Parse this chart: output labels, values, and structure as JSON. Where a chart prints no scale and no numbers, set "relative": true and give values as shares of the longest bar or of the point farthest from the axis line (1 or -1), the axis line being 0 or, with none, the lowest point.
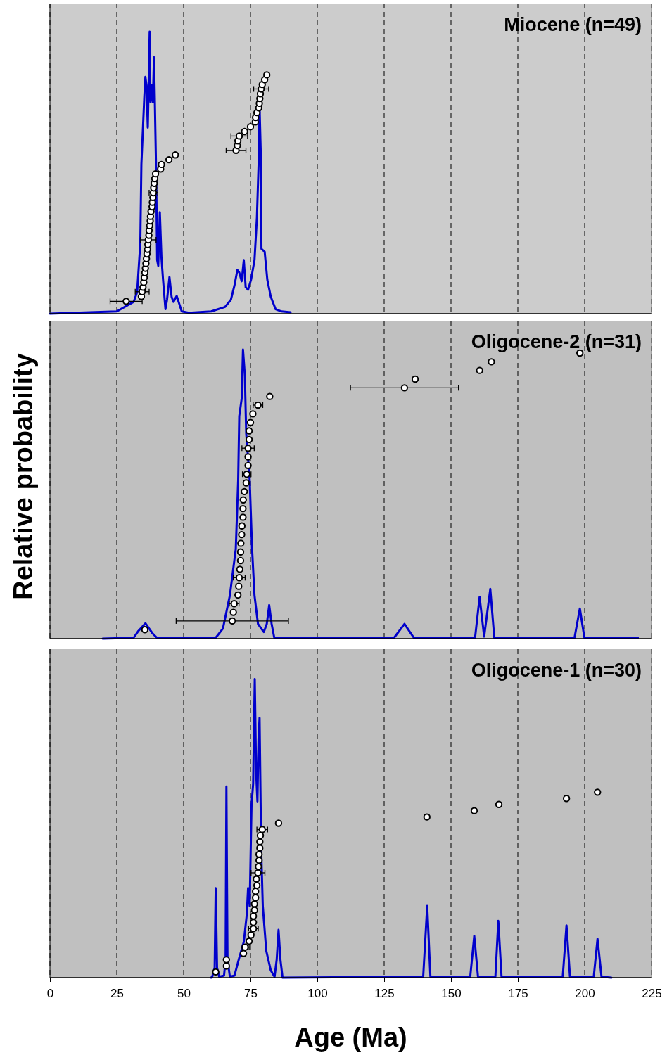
{
  "chart_data": [
    {
      "type": "line",
      "title": "Miocene (n=49)",
      "relative": true,
      "xlim": [
        0,
        225
      ],
      "xticks": [
        0,
        25,
        50,
        75,
        100,
        125,
        150,
        175,
        200,
        225
      ],
      "grid": "x",
      "tick_labels": false,
      "series": [
        {
          "type": "line",
          "color": "#0000cc",
          "x": [
            0,
            15,
            25,
            31.3,
            32.6,
            33.8,
            34.2,
            35.3,
            35.7,
            36.1,
            36.6,
            37.3,
            37.6,
            38.2,
            38.5,
            38.9,
            39.2,
            39.7,
            40.1,
            40.5,
            41.1,
            41.7,
            42.3,
            43.2,
            43.8,
            44.7,
            45.5,
            46.2,
            47.4,
            48.4,
            49.3,
            52,
            60.3,
            65.5,
            67.7,
            69.0,
            70.1,
            70.8,
            71.7,
            72.5,
            73.2,
            74.1,
            75.2,
            76.5,
            77.4,
            78.1,
            78.4,
            78.9,
            79.1,
            80.3,
            81.3,
            82.6,
            84.4,
            86.6,
            90
          ],
          "values": [
            0,
            0.005,
            0.008,
            0.042,
            0.076,
            0.25,
            0.53,
            0.77,
            0.84,
            0.81,
            0.66,
            1.0,
            0.75,
            0.81,
            0.75,
            0.91,
            0.77,
            0.51,
            0.19,
            0.17,
            0.36,
            0.2,
            0.12,
            0.016,
            0.05,
            0.13,
            0.06,
            0.042,
            0.063,
            0.034,
            0.008,
            0.003,
            0.008,
            0.024,
            0.05,
            0.1,
            0.155,
            0.146,
            0.115,
            0.19,
            0.094,
            0.085,
            0.12,
            0.19,
            0.34,
            0.55,
            0.73,
            0.55,
            0.23,
            0.22,
            0.12,
            0.06,
            0.016,
            0.008,
            0.005
          ]
        },
        {
          "type": "scatter",
          "color": "#ffffff",
          "marker": "circle",
          "x": [
            28.5,
            34.2,
            34.5,
            34.8,
            35.1,
            35.3,
            35.5,
            35.7,
            35.9,
            36.1,
            36.3,
            36.5,
            36.6,
            36.8,
            37.0,
            37.1,
            37.3,
            37.5,
            37.6,
            37.8,
            38.2,
            38.3,
            38.5,
            38.7,
            38.8,
            39.0,
            39.2,
            39.5,
            41.4,
            41.7,
            44.5,
            46.9,
            69.6,
            70.1,
            70.3,
            70.8,
            72.8,
            75.0,
            76.8,
            76.9,
            77.4,
            78.1,
            78.3,
            78.5,
            78.7,
            79.0,
            79.4,
            80.3,
            81.1
          ],
          "values": [
            0.044,
            0.061,
            0.078,
            0.094,
            0.111,
            0.128,
            0.145,
            0.161,
            0.178,
            0.195,
            0.212,
            0.228,
            0.245,
            0.262,
            0.278,
            0.295,
            0.312,
            0.329,
            0.345,
            0.362,
            0.379,
            0.395,
            0.412,
            0.429,
            0.446,
            0.462,
            0.479,
            0.496,
            0.513,
            0.529,
            0.546,
            0.563,
            0.579,
            0.596,
            0.613,
            0.63,
            0.646,
            0.663,
            0.68,
            0.696,
            0.713,
            0.73,
            0.746,
            0.763,
            0.78,
            0.797,
            0.813,
            0.83,
            0.847
          ],
          "xerrors": [
            6,
            null,
            2.6,
            null,
            null,
            null,
            null,
            null,
            null,
            null,
            null,
            null,
            null,
            2.9,
            null,
            null,
            null,
            null,
            null,
            null,
            null,
            null,
            null,
            1.6,
            null,
            null,
            null,
            null,
            null,
            null,
            null,
            null,
            3.7,
            null,
            null,
            3.1,
            null,
            null,
            null,
            null,
            null,
            null,
            null,
            null,
            null,
            2.8,
            null,
            null,
            null
          ]
        }
      ]
    },
    {
      "type": "line",
      "title": "Oligocene-2 (n=31)",
      "ylabel": "Relative probability",
      "relative": true,
      "xlim": [
        0,
        225
      ],
      "xticks": [
        0,
        25,
        50,
        75,
        100,
        125,
        150,
        175,
        200,
        225
      ],
      "grid": "x",
      "tick_labels": false,
      "series": [
        {
          "type": "line",
          "color": "#0000cc",
          "x": [
            19.7,
            31.3,
            33.1,
            35.7,
            38.3,
            40,
            62.0,
            64.7,
            67.3,
            69.5,
            70.4,
            70.8,
            71.7,
            72.2,
            72.9,
            73.4,
            74.7,
            75.6,
            76.5,
            77.8,
            80.0,
            81.1,
            82.0,
            82.9,
            83.9,
            128.7,
            132.6,
            136.1,
            159.0,
            160.7,
            162.4,
            164.7,
            166.2,
            196.2,
            198.2,
            199.9,
            219.9
          ],
          "values": [
            0,
            0.003,
            0.027,
            0.053,
            0.019,
            0.003,
            0.003,
            0.035,
            0.15,
            0.31,
            0.55,
            0.77,
            0.83,
            1.0,
            0.91,
            0.71,
            0.55,
            0.31,
            0.15,
            0.051,
            0.023,
            0.051,
            0.116,
            0.051,
            0.003,
            0.003,
            0.051,
            0.003,
            0.003,
            0.144,
            0.007,
            0.172,
            0.003,
            0.003,
            0.104,
            0.003,
            0.003
          ]
        },
        {
          "type": "scatter",
          "color": "#ffffff",
          "marker": "circle",
          "x": [
            35.5,
            68.2,
            68.6,
            68.9,
            70.3,
            70.6,
            70.8,
            71.0,
            71.3,
            71.3,
            71.4,
            71.7,
            71.8,
            72.2,
            72.2,
            72.3,
            72.7,
            73.4,
            73.6,
            74.1,
            74.1,
            74.1,
            74.5,
            74.5,
            75.0,
            75.9,
            77.8,
            82.2,
            132.6,
            136.6,
            160.7,
            165.1,
            198.2
          ],
          "values": [
            0.031,
            0.061,
            0.091,
            0.121,
            0.151,
            0.181,
            0.211,
            0.24,
            0.27,
            0.3,
            0.33,
            0.36,
            0.39,
            0.42,
            0.45,
            0.48,
            0.509,
            0.539,
            0.569,
            0.599,
            0.629,
            0.659,
            0.689,
            0.719,
            0.748,
            0.778,
            0.808,
            0.838,
            0.868,
            0.898,
            0.928,
            0.958,
            0.988
          ],
          "xerrors": [
            null,
            21,
            null,
            1.8,
            null,
            null,
            2.2,
            null,
            null,
            null,
            null,
            null,
            null,
            null,
            null,
            null,
            null,
            null,
            1.6,
            null,
            null,
            2.3,
            null,
            null,
            null,
            null,
            1.8,
            null,
            20.2,
            null,
            null,
            null,
            null
          ]
        }
      ]
    },
    {
      "type": "line",
      "title": "Oligocene-1 (n=30)",
      "xlabel": "Age (Ma)",
      "relative": true,
      "xlim": [
        0,
        225
      ],
      "xticks": [
        0,
        25,
        50,
        75,
        100,
        125,
        150,
        175,
        200,
        225
      ],
      "grid": "x",
      "tick_labels": "x",
      "series": [
        {
          "type": "line",
          "color": "#0000cc",
          "x": [
            60.3,
            60.7,
            61.6,
            62.0,
            62.5,
            63.3,
            65.1,
            65.7,
            66.0,
            66.4,
            67.3,
            69.0,
            70.8,
            72.5,
            73.6,
            74.1,
            74.7,
            75.4,
            76.0,
            76.6,
            77.1,
            77.6,
            78.0,
            78.4,
            78.7,
            79.0,
            79.6,
            80.9,
            82.6,
            84.0,
            84.8,
            85.5,
            86.2,
            87.0,
            139.6,
            141.1,
            142.3,
            157.2,
            158.7,
            160.1,
            166.6,
            167.7,
            168.9,
            191.8,
            193.2,
            194.5,
            203.4,
            204.8,
            206.3,
            210
          ],
          "values": [
            0,
            0.003,
            0.033,
            0.3,
            0.033,
            0.003,
            0.007,
            0.06,
            0.64,
            0.06,
            0.003,
            0.007,
            0.067,
            0.12,
            0.21,
            0.3,
            0.24,
            0.58,
            0.65,
            1.0,
            0.69,
            0.59,
            0.8,
            0.87,
            0.65,
            0.43,
            0.24,
            0.09,
            0.024,
            0.003,
            0.06,
            0.16,
            0.06,
            0,
            0.003,
            0.24,
            0.003,
            0.003,
            0.14,
            0.003,
            0.003,
            0.19,
            0.003,
            0.003,
            0.175,
            0.003,
            0.003,
            0.13,
            0.003,
            0
          ]
        },
        {
          "type": "scatter",
          "color": "#ffffff",
          "marker": "circle",
          "x": [
            62.0,
            66.0,
            66.0,
            72.4,
            73.0,
            74.5,
            75.2,
            76.1,
            76.1,
            76.1,
            76.5,
            76.5,
            76.9,
            76.9,
            77.4,
            77.2,
            77.8,
            78.0,
            78.2,
            78.2,
            78.5,
            78.5,
            78.7,
            79.4,
            85.5,
            141.0,
            158.7,
            167.9,
            193.2,
            204.8
          ],
          "values": [
            0.019,
            0.039,
            0.06,
            0.081,
            0.102,
            0.122,
            0.143,
            0.164,
            0.185,
            0.206,
            0.226,
            0.247,
            0.268,
            0.289,
            0.309,
            0.33,
            0.351,
            0.372,
            0.393,
            0.413,
            0.434,
            0.455,
            0.476,
            0.496,
            0.517,
            0.538,
            0.559,
            0.58,
            0.6,
            0.621
          ],
          "xerrors": [
            null,
            null,
            null,
            null,
            1.5,
            null,
            null,
            1.8,
            null,
            null,
            null,
            null,
            null,
            null,
            null,
            null,
            2.6,
            null,
            null,
            null,
            null,
            null,
            null,
            2.0,
            null,
            null,
            null,
            null,
            null,
            null
          ]
        }
      ]
    }
  ]
}
